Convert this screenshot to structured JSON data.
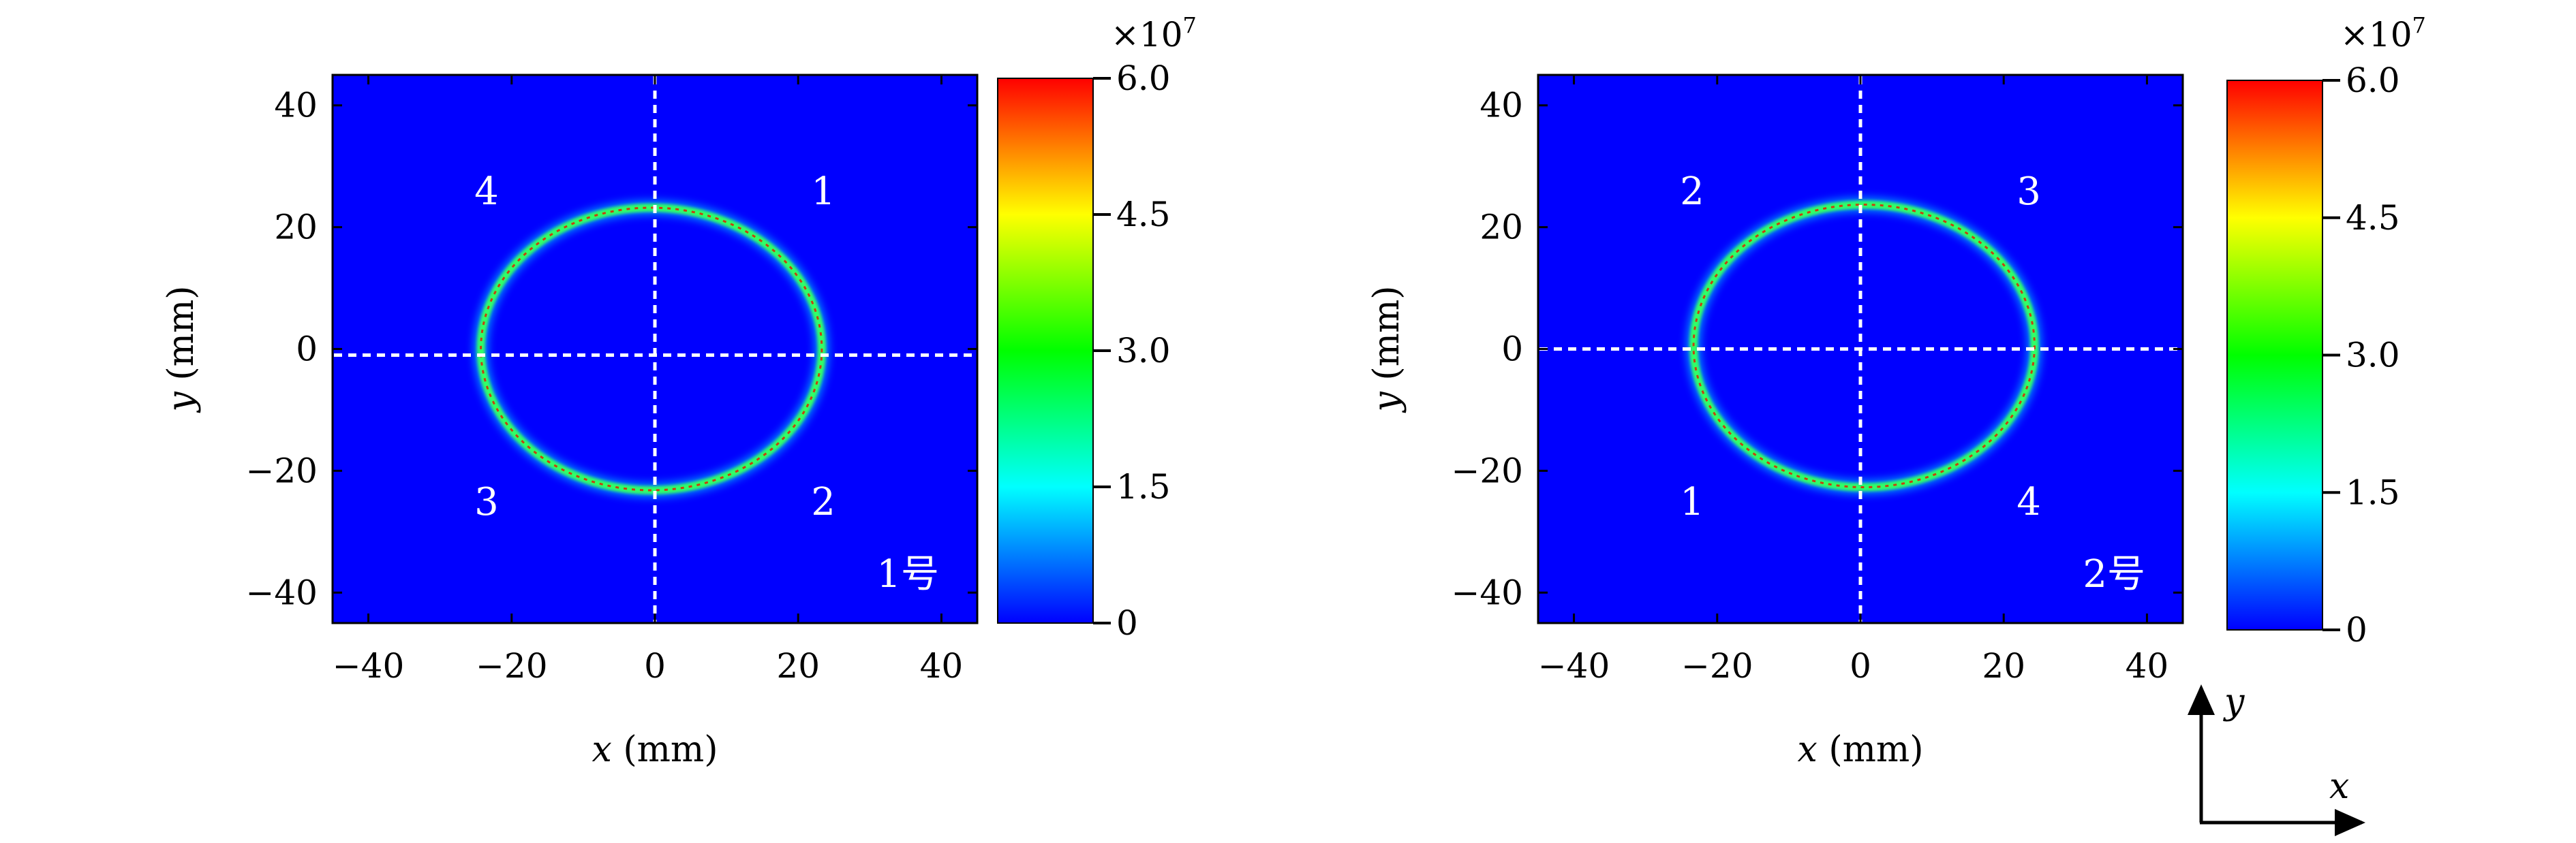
{
  "chart_data": [
    {
      "type": "heatmap",
      "tag": "1号",
      "xlabel_var": "x",
      "xlabel_unit": " (mm)",
      "ylabel_var": "y",
      "ylabel_unit": " (mm)",
      "xlim": [
        -45,
        45
      ],
      "ylim": [
        -45,
        45
      ],
      "xticks": [
        -40,
        -20,
        0,
        20,
        40
      ],
      "yticks": [
        -40,
        -20,
        0,
        20,
        40
      ],
      "ring": {
        "cx": -0.5,
        "cy": 0,
        "rx": 23.8,
        "ry": 23.2
      },
      "crosshair": {
        "x": 0,
        "y": -1
      },
      "quadrants": [
        {
          "label": "4",
          "x": -23.5,
          "y": 26
        },
        {
          "label": "1",
          "x": 23.5,
          "y": 26
        },
        {
          "label": "3",
          "x": -23.5,
          "y": -25
        },
        {
          "label": "2",
          "x": 23.5,
          "y": -25
        }
      ],
      "colorbar": {
        "range": [
          0,
          60000000
        ],
        "ticks": [
          "6.0",
          "4.5",
          "3.0",
          "1.5",
          "0"
        ],
        "multiplier": "×10",
        "exponent": "7"
      }
    },
    {
      "type": "heatmap",
      "tag": "2号",
      "xlabel_var": "x",
      "xlabel_unit": " (mm)",
      "ylabel_var": "y",
      "ylabel_unit": " (mm)",
      "xlim": [
        -45,
        45
      ],
      "ylim": [
        -45,
        45
      ],
      "xticks": [
        -40,
        -20,
        0,
        20,
        40
      ],
      "yticks": [
        -40,
        -20,
        0,
        20,
        40
      ],
      "ring": {
        "cx": 0.5,
        "cy": 0.5,
        "rx": 23.8,
        "ry": 23.2
      },
      "crosshair": {
        "x": 0,
        "y": 0
      },
      "quadrants": [
        {
          "label": "2",
          "x": -23.5,
          "y": 26
        },
        {
          "label": "3",
          "x": 23.5,
          "y": 26
        },
        {
          "label": "1",
          "x": -23.5,
          "y": -25
        },
        {
          "label": "4",
          "x": 23.5,
          "y": -25
        }
      ],
      "colorbar": {
        "range": [
          0,
          60000000
        ],
        "ticks": [
          "6.0",
          "4.5",
          "3.0",
          "1.5",
          "0"
        ],
        "multiplier": "×10",
        "exponent": "7"
      }
    }
  ],
  "axes_indicator": {
    "x_label": "x",
    "y_label": "y"
  },
  "colors": {
    "background": "#0000ff",
    "ring_outer": "#00e8ff",
    "ring_mid": "#33ff66",
    "ring_core": "#e02000",
    "crosshair": "#ffffff",
    "colormap": [
      "#0000ff",
      "#00ffff",
      "#00ff00",
      "#ffff00",
      "#ff0000"
    ]
  }
}
